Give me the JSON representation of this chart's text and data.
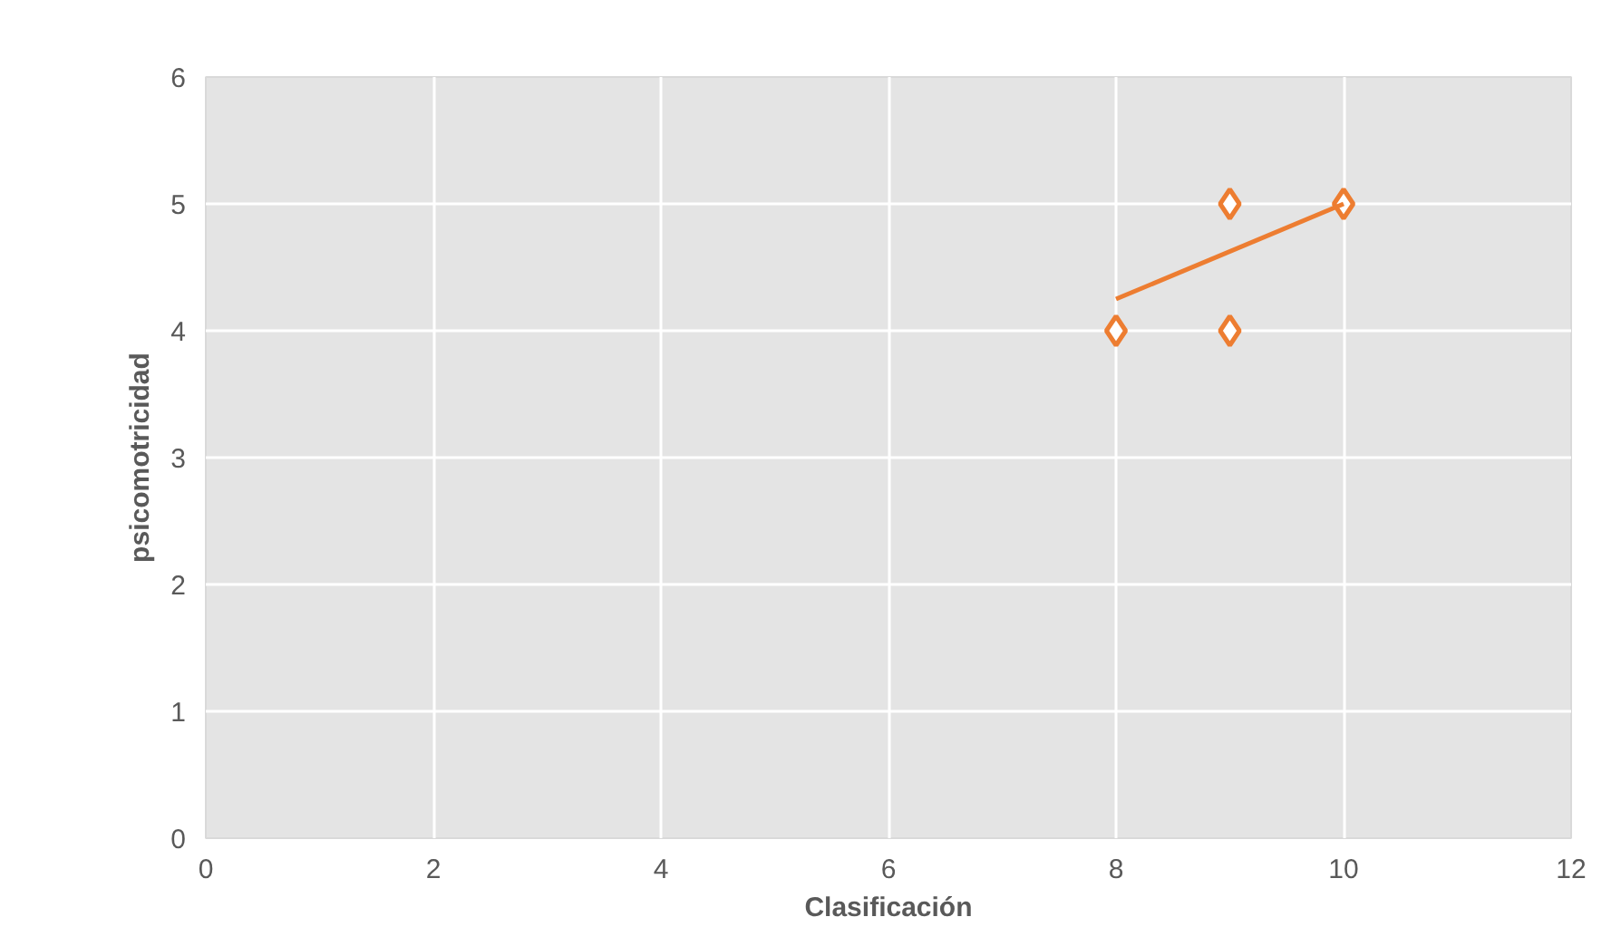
{
  "chart_data": {
    "type": "scatter",
    "xlabel": "Clasificación",
    "ylabel": "psicomotricidad",
    "series": [
      {
        "color": "#ed7d31",
        "marker": "diamond",
        "x": [
          8,
          9,
          9,
          10
        ],
        "values": [
          4,
          5,
          4,
          5
        ]
      },
      {
        "type": "line",
        "color": "#ed7d31",
        "marker": "none",
        "x": [
          8,
          10
        ],
        "values": [
          4.25,
          5.0
        ]
      }
    ],
    "xlim": [
      0,
      12
    ],
    "xticks": [
      0,
      2,
      4,
      6,
      8,
      10,
      12
    ],
    "ylim": [
      0,
      6
    ],
    "yticks": [
      0,
      1,
      2,
      3,
      4,
      5,
      6
    ],
    "grid": true
  }
}
